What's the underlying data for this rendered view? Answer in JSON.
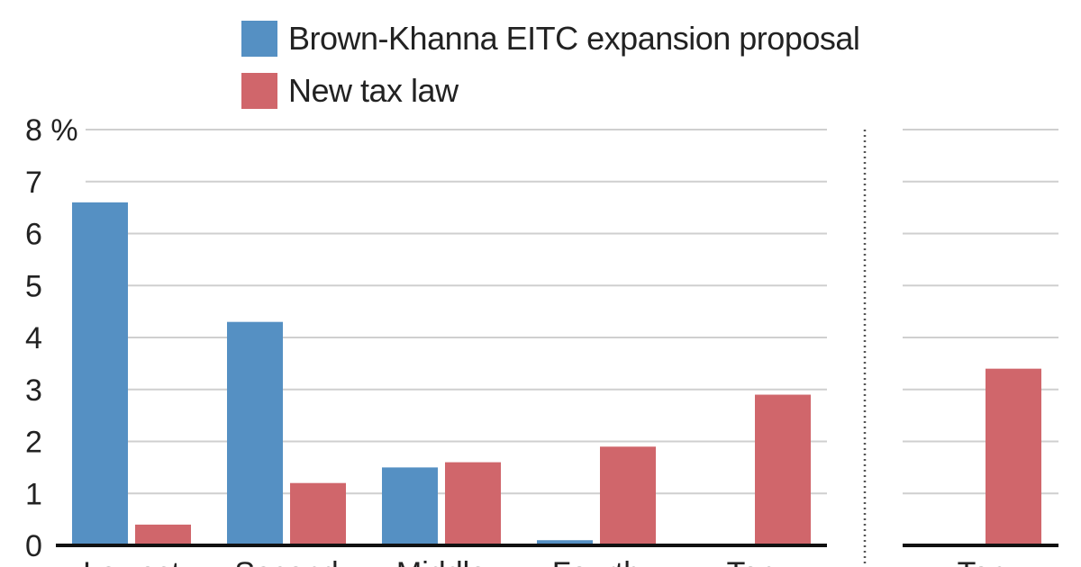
{
  "chart_data": {
    "type": "bar",
    "ylim": [
      0,
      8
    ],
    "y_ticks": [
      "0",
      "1",
      "2",
      "3",
      "4",
      "5",
      "6",
      "7",
      "8 %"
    ],
    "grid": true,
    "legend_position": "top",
    "series": [
      {
        "name": "Brown-Khanna EITC expansion proposal",
        "color": "#5590c3"
      },
      {
        "name": "New tax law",
        "color": "#d0666b"
      }
    ],
    "panels": [
      {
        "categories": [
          "Lowest",
          "Second",
          "Middle",
          "Fourth",
          "Top"
        ],
        "values": [
          [
            6.6,
            4.3,
            1.5,
            0.1,
            0.0
          ],
          [
            0.4,
            1.2,
            1.6,
            1.9,
            2.9
          ]
        ]
      },
      {
        "categories": [
          "Top"
        ],
        "values": [
          [
            0.0
          ],
          [
            3.4
          ]
        ]
      }
    ]
  }
}
